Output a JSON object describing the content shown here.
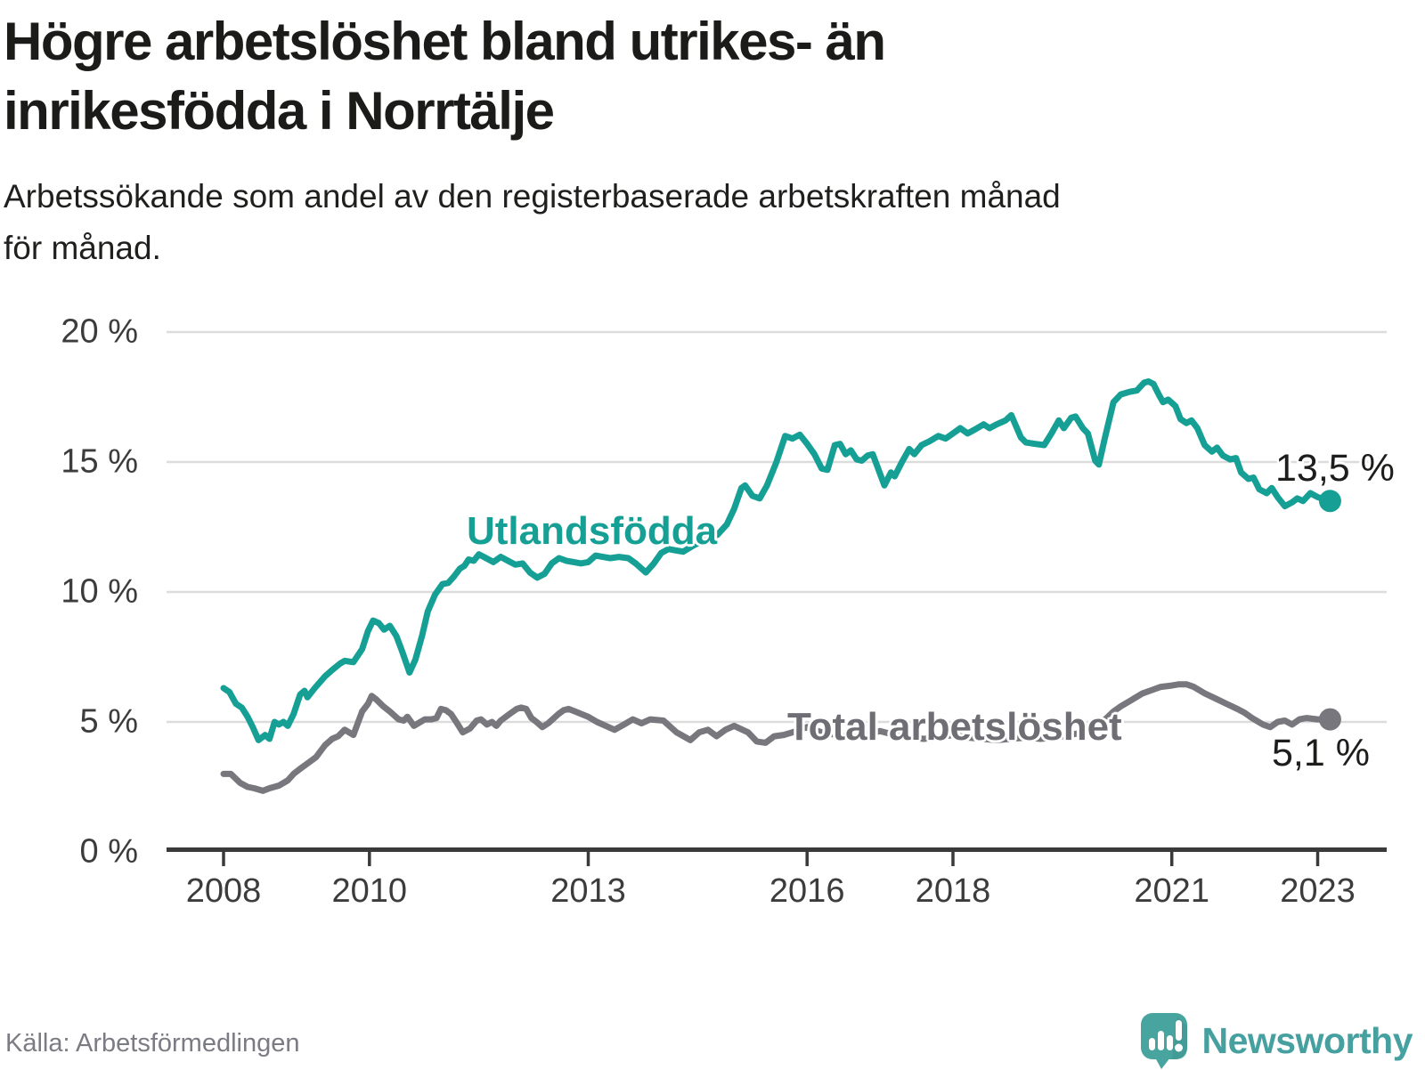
{
  "header": {
    "title_lines": [
      "Högre arbetslöshet bland utrikes- än",
      "inrikesfödda i Norrtälje"
    ],
    "subtitle_lines": [
      "Arbetssökande som andel av den registerbaserade arbetskraften månad",
      "för månad."
    ]
  },
  "footer": {
    "source": "Källa: Arbetsförmedlingen",
    "logo_text": "Newsworthy",
    "logo_color": "#48a49e"
  },
  "chart_data": {
    "type": "line",
    "title": "Högre arbetslöshet bland utrikes- än inrikesfödda i Norrtälje",
    "xlabel": "",
    "ylabel": "",
    "grid": true,
    "x_axis": {
      "range": [
        2007.2,
        2023.95
      ],
      "ticks": [
        2008,
        2010,
        2013,
        2016,
        2018,
        2021,
        2023
      ],
      "tick_labels": [
        "2008",
        "2010",
        "2013",
        "2016",
        "2018",
        "2021",
        "2023"
      ]
    },
    "y_axis": {
      "range": [
        0,
        20
      ],
      "ticks": [
        0,
        5,
        10,
        15,
        20
      ],
      "tick_labels": [
        "0 %",
        "5 %",
        "10 %",
        "15 %",
        "20 %"
      ]
    },
    "series": [
      {
        "name": "Utlandsfödda",
        "color": "#16a095",
        "end_label": "13,5 %",
        "end_value": 13.5,
        "points": [
          [
            2008.0,
            6.3
          ],
          [
            2008.08,
            6.15
          ],
          [
            2008.17,
            5.7
          ],
          [
            2008.25,
            5.55
          ],
          [
            2008.33,
            5.2
          ],
          [
            2008.4,
            4.8
          ],
          [
            2008.48,
            4.3
          ],
          [
            2008.57,
            4.5
          ],
          [
            2008.63,
            4.35
          ],
          [
            2008.7,
            5.0
          ],
          [
            2008.76,
            4.9
          ],
          [
            2008.82,
            5.0
          ],
          [
            2008.88,
            4.85
          ],
          [
            2008.96,
            5.3
          ],
          [
            2009.05,
            6.05
          ],
          [
            2009.11,
            6.2
          ],
          [
            2009.15,
            5.95
          ],
          [
            2009.25,
            6.3
          ],
          [
            2009.39,
            6.75
          ],
          [
            2009.49,
            7.0
          ],
          [
            2009.6,
            7.25
          ],
          [
            2009.66,
            7.35
          ],
          [
            2009.78,
            7.3
          ],
          [
            2009.9,
            7.8
          ],
          [
            2009.98,
            8.5
          ],
          [
            2010.05,
            8.9
          ],
          [
            2010.13,
            8.8
          ],
          [
            2010.2,
            8.55
          ],
          [
            2010.28,
            8.7
          ],
          [
            2010.37,
            8.3
          ],
          [
            2010.45,
            7.7
          ],
          [
            2010.55,
            6.9
          ],
          [
            2010.63,
            7.4
          ],
          [
            2010.72,
            8.3
          ],
          [
            2010.8,
            9.25
          ],
          [
            2010.9,
            9.9
          ],
          [
            2011.0,
            10.3
          ],
          [
            2011.08,
            10.35
          ],
          [
            2011.16,
            10.6
          ],
          [
            2011.24,
            10.9
          ],
          [
            2011.3,
            11.0
          ],
          [
            2011.36,
            11.25
          ],
          [
            2011.43,
            11.2
          ],
          [
            2011.5,
            11.45
          ],
          [
            2011.6,
            11.3
          ],
          [
            2011.7,
            11.15
          ],
          [
            2011.8,
            11.35
          ],
          [
            2011.9,
            11.2
          ],
          [
            2012.0,
            11.05
          ],
          [
            2012.1,
            11.1
          ],
          [
            2012.2,
            10.75
          ],
          [
            2012.3,
            10.55
          ],
          [
            2012.4,
            10.7
          ],
          [
            2012.5,
            11.1
          ],
          [
            2012.6,
            11.3
          ],
          [
            2012.7,
            11.2
          ],
          [
            2012.8,
            11.15
          ],
          [
            2012.9,
            11.1
          ],
          [
            2013.0,
            11.15
          ],
          [
            2013.1,
            11.4
          ],
          [
            2013.2,
            11.35
          ],
          [
            2013.3,
            11.3
          ],
          [
            2013.42,
            11.35
          ],
          [
            2013.55,
            11.3
          ],
          [
            2013.65,
            11.1
          ],
          [
            2013.79,
            10.75
          ],
          [
            2013.9,
            11.1
          ],
          [
            2014.0,
            11.5
          ],
          [
            2014.1,
            11.65
          ],
          [
            2014.2,
            11.6
          ],
          [
            2014.3,
            11.55
          ],
          [
            2014.45,
            11.8
          ],
          [
            2014.6,
            12.0
          ],
          [
            2014.77,
            12.2
          ],
          [
            2014.9,
            12.6
          ],
          [
            2015.0,
            13.2
          ],
          [
            2015.1,
            14.0
          ],
          [
            2015.15,
            14.1
          ],
          [
            2015.25,
            13.7
          ],
          [
            2015.35,
            13.6
          ],
          [
            2015.45,
            14.1
          ],
          [
            2015.58,
            15.0
          ],
          [
            2015.7,
            16.0
          ],
          [
            2015.8,
            15.9
          ],
          [
            2015.9,
            16.05
          ],
          [
            2016.0,
            15.7
          ],
          [
            2016.1,
            15.3
          ],
          [
            2016.2,
            14.75
          ],
          [
            2016.28,
            14.7
          ],
          [
            2016.38,
            15.65
          ],
          [
            2016.45,
            15.7
          ],
          [
            2016.53,
            15.3
          ],
          [
            2016.6,
            15.45
          ],
          [
            2016.68,
            15.1
          ],
          [
            2016.75,
            15.05
          ],
          [
            2016.83,
            15.25
          ],
          [
            2016.9,
            15.3
          ],
          [
            2017.0,
            14.55
          ],
          [
            2017.06,
            14.1
          ],
          [
            2017.15,
            14.6
          ],
          [
            2017.2,
            14.45
          ],
          [
            2017.3,
            15.0
          ],
          [
            2017.4,
            15.5
          ],
          [
            2017.47,
            15.3
          ],
          [
            2017.57,
            15.65
          ],
          [
            2017.68,
            15.8
          ],
          [
            2017.8,
            16.0
          ],
          [
            2017.9,
            15.9
          ],
          [
            2018.0,
            16.1
          ],
          [
            2018.1,
            16.3
          ],
          [
            2018.2,
            16.1
          ],
          [
            2018.3,
            16.25
          ],
          [
            2018.42,
            16.45
          ],
          [
            2018.5,
            16.3
          ],
          [
            2018.6,
            16.45
          ],
          [
            2018.72,
            16.6
          ],
          [
            2018.8,
            16.8
          ],
          [
            2018.93,
            15.95
          ],
          [
            2019.0,
            15.75
          ],
          [
            2019.12,
            15.7
          ],
          [
            2019.25,
            15.65
          ],
          [
            2019.35,
            16.1
          ],
          [
            2019.45,
            16.6
          ],
          [
            2019.52,
            16.3
          ],
          [
            2019.62,
            16.7
          ],
          [
            2019.68,
            16.75
          ],
          [
            2019.78,
            16.3
          ],
          [
            2019.85,
            16.1
          ],
          [
            2019.95,
            15.05
          ],
          [
            2020.0,
            14.9
          ],
          [
            2020.08,
            15.9
          ],
          [
            2020.2,
            17.3
          ],
          [
            2020.3,
            17.6
          ],
          [
            2020.42,
            17.7
          ],
          [
            2020.52,
            17.75
          ],
          [
            2020.62,
            18.05
          ],
          [
            2020.68,
            18.1
          ],
          [
            2020.75,
            18.0
          ],
          [
            2020.82,
            17.6
          ],
          [
            2020.88,
            17.3
          ],
          [
            2020.95,
            17.4
          ],
          [
            2021.05,
            17.15
          ],
          [
            2021.12,
            16.65
          ],
          [
            2021.2,
            16.5
          ],
          [
            2021.27,
            16.6
          ],
          [
            2021.35,
            16.3
          ],
          [
            2021.45,
            15.65
          ],
          [
            2021.55,
            15.4
          ],
          [
            2021.62,
            15.55
          ],
          [
            2021.7,
            15.25
          ],
          [
            2021.8,
            15.1
          ],
          [
            2021.88,
            15.15
          ],
          [
            2021.95,
            14.6
          ],
          [
            2022.05,
            14.35
          ],
          [
            2022.12,
            14.4
          ],
          [
            2022.2,
            13.95
          ],
          [
            2022.3,
            13.8
          ],
          [
            2022.37,
            14.0
          ],
          [
            2022.45,
            13.65
          ],
          [
            2022.55,
            13.3
          ],
          [
            2022.65,
            13.45
          ],
          [
            2022.72,
            13.6
          ],
          [
            2022.8,
            13.5
          ],
          [
            2022.9,
            13.8
          ],
          [
            2023.0,
            13.65
          ],
          [
            2023.17,
            13.5
          ]
        ]
      },
      {
        "name": "Total arbetslöshet",
        "color": "#77777d",
        "end_label": "5,1 %",
        "end_value": 5.1,
        "points": [
          [
            2008.0,
            3.0
          ],
          [
            2008.1,
            3.0
          ],
          [
            2008.23,
            2.65
          ],
          [
            2008.33,
            2.5
          ],
          [
            2008.42,
            2.45
          ],
          [
            2008.54,
            2.35
          ],
          [
            2008.63,
            2.45
          ],
          [
            2008.76,
            2.55
          ],
          [
            2008.88,
            2.75
          ],
          [
            2008.96,
            3.0
          ],
          [
            2009.05,
            3.2
          ],
          [
            2009.15,
            3.4
          ],
          [
            2009.27,
            3.65
          ],
          [
            2009.39,
            4.1
          ],
          [
            2009.49,
            4.35
          ],
          [
            2009.57,
            4.45
          ],
          [
            2009.66,
            4.7
          ],
          [
            2009.78,
            4.5
          ],
          [
            2009.9,
            5.4
          ],
          [
            2009.98,
            5.7
          ],
          [
            2010.03,
            6.0
          ],
          [
            2010.1,
            5.85
          ],
          [
            2010.19,
            5.6
          ],
          [
            2010.28,
            5.4
          ],
          [
            2010.4,
            5.1
          ],
          [
            2010.47,
            5.05
          ],
          [
            2010.52,
            5.2
          ],
          [
            2010.61,
            4.85
          ],
          [
            2010.7,
            5.0
          ],
          [
            2010.76,
            5.1
          ],
          [
            2010.85,
            5.1
          ],
          [
            2010.92,
            5.15
          ],
          [
            2010.98,
            5.5
          ],
          [
            2011.05,
            5.45
          ],
          [
            2011.12,
            5.3
          ],
          [
            2011.19,
            5.0
          ],
          [
            2011.28,
            4.6
          ],
          [
            2011.38,
            4.75
          ],
          [
            2011.47,
            5.05
          ],
          [
            2011.53,
            5.1
          ],
          [
            2011.61,
            4.9
          ],
          [
            2011.68,
            5.0
          ],
          [
            2011.74,
            4.85
          ],
          [
            2011.8,
            5.05
          ],
          [
            2011.92,
            5.3
          ],
          [
            2012.02,
            5.5
          ],
          [
            2012.08,
            5.55
          ],
          [
            2012.15,
            5.5
          ],
          [
            2012.22,
            5.15
          ],
          [
            2012.29,
            5.0
          ],
          [
            2012.37,
            4.8
          ],
          [
            2012.45,
            4.95
          ],
          [
            2012.51,
            5.1
          ],
          [
            2012.59,
            5.3
          ],
          [
            2012.66,
            5.45
          ],
          [
            2012.73,
            5.5
          ],
          [
            2012.82,
            5.4
          ],
          [
            2012.91,
            5.3
          ],
          [
            2013.0,
            5.2
          ],
          [
            2013.12,
            5.0
          ],
          [
            2013.24,
            4.85
          ],
          [
            2013.36,
            4.7
          ],
          [
            2013.49,
            4.9
          ],
          [
            2013.61,
            5.1
          ],
          [
            2013.73,
            4.95
          ],
          [
            2013.85,
            5.1
          ],
          [
            2014.03,
            5.05
          ],
          [
            2014.21,
            4.6
          ],
          [
            2014.4,
            4.3
          ],
          [
            2014.52,
            4.6
          ],
          [
            2014.64,
            4.7
          ],
          [
            2014.76,
            4.45
          ],
          [
            2014.88,
            4.7
          ],
          [
            2015.0,
            4.85
          ],
          [
            2015.19,
            4.6
          ],
          [
            2015.31,
            4.25
          ],
          [
            2015.43,
            4.2
          ],
          [
            2015.55,
            4.45
          ],
          [
            2015.68,
            4.5
          ],
          [
            2015.8,
            4.6
          ],
          [
            2016.0,
            4.8
          ],
          [
            2016.2,
            4.6
          ],
          [
            2016.4,
            4.5
          ],
          [
            2016.6,
            4.4
          ],
          [
            2016.8,
            4.5
          ],
          [
            2017.0,
            4.65
          ],
          [
            2017.2,
            4.5
          ],
          [
            2017.4,
            4.4
          ],
          [
            2017.6,
            4.35
          ],
          [
            2017.8,
            4.4
          ],
          [
            2018.0,
            4.5
          ],
          [
            2018.2,
            4.4
          ],
          [
            2018.4,
            4.35
          ],
          [
            2018.6,
            4.3
          ],
          [
            2018.8,
            4.35
          ],
          [
            2019.0,
            4.4
          ],
          [
            2019.2,
            4.35
          ],
          [
            2019.4,
            4.4
          ],
          [
            2019.6,
            4.5
          ],
          [
            2019.8,
            4.6
          ],
          [
            2019.95,
            4.7
          ],
          [
            2020.05,
            5.0
          ],
          [
            2020.2,
            5.4
          ],
          [
            2020.3,
            5.6
          ],
          [
            2020.45,
            5.85
          ],
          [
            2020.6,
            6.1
          ],
          [
            2020.7,
            6.2
          ],
          [
            2020.85,
            6.35
          ],
          [
            2021.0,
            6.4
          ],
          [
            2021.1,
            6.45
          ],
          [
            2021.2,
            6.45
          ],
          [
            2021.3,
            6.35
          ],
          [
            2021.45,
            6.1
          ],
          [
            2021.6,
            5.9
          ],
          [
            2021.75,
            5.7
          ],
          [
            2021.9,
            5.5
          ],
          [
            2022.0,
            5.35
          ],
          [
            2022.1,
            5.15
          ],
          [
            2022.25,
            4.9
          ],
          [
            2022.35,
            4.8
          ],
          [
            2022.45,
            5.0
          ],
          [
            2022.55,
            5.05
          ],
          [
            2022.65,
            4.9
          ],
          [
            2022.75,
            5.1
          ],
          [
            2022.85,
            5.15
          ],
          [
            2023.0,
            5.1
          ],
          [
            2023.17,
            5.1
          ]
        ]
      }
    ]
  }
}
